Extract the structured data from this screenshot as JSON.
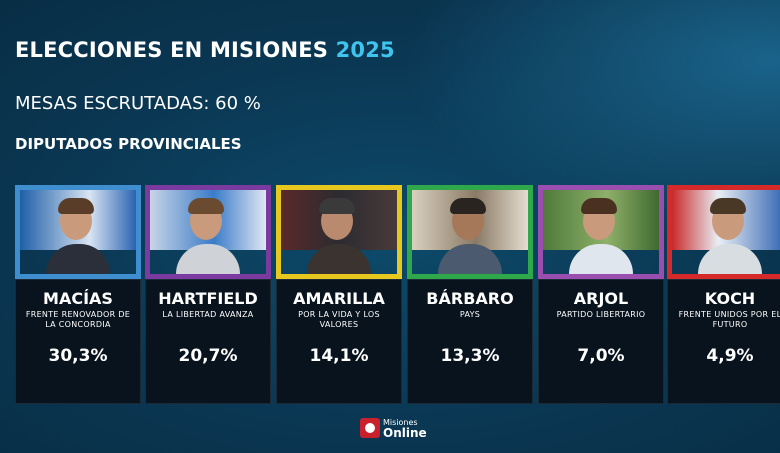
{
  "header": {
    "title_main": "ELECCIONES EN MISIONES",
    "title_year": "2025",
    "subtitle": "MESAS ESCRUTADAS: 60 %",
    "section": "DIPUTADOS PROVINCIALES"
  },
  "candidates": [
    {
      "name": "MACÍAS",
      "party": "FRENTE RENOVADOR DE LA CONCORDIA",
      "percent": "30,3%",
      "value": 30.3,
      "frame_color": "#3f8fd0"
    },
    {
      "name": "HARTFIELD",
      "party": "LA LIBERTAD AVANZA",
      "percent": "20,7%",
      "value": 20.7,
      "frame_color": "#7a3aa0"
    },
    {
      "name": "AMARILLA",
      "party": "POR LA VIDA Y LOS VALORES",
      "percent": "14,1%",
      "value": 14.1,
      "frame_color": "#e6c81f"
    },
    {
      "name": "BÁRBARO",
      "party": "PAYS",
      "percent": "13,3%",
      "value": 13.3,
      "frame_color": "#2ea84a"
    },
    {
      "name": "ARJOL",
      "party": "PARTIDO LIBERTARIO",
      "percent": "7,0%",
      "value": 7.0,
      "frame_color": "#9a4fb0"
    },
    {
      "name": "KOCH",
      "party": "FRENTE UNIDOS POR EL FUTURO",
      "percent": "4,9%",
      "value": 4.9,
      "frame_color": "#d62a2a"
    }
  ],
  "logo": {
    "line1": "Misiones",
    "line2": "Online"
  }
}
